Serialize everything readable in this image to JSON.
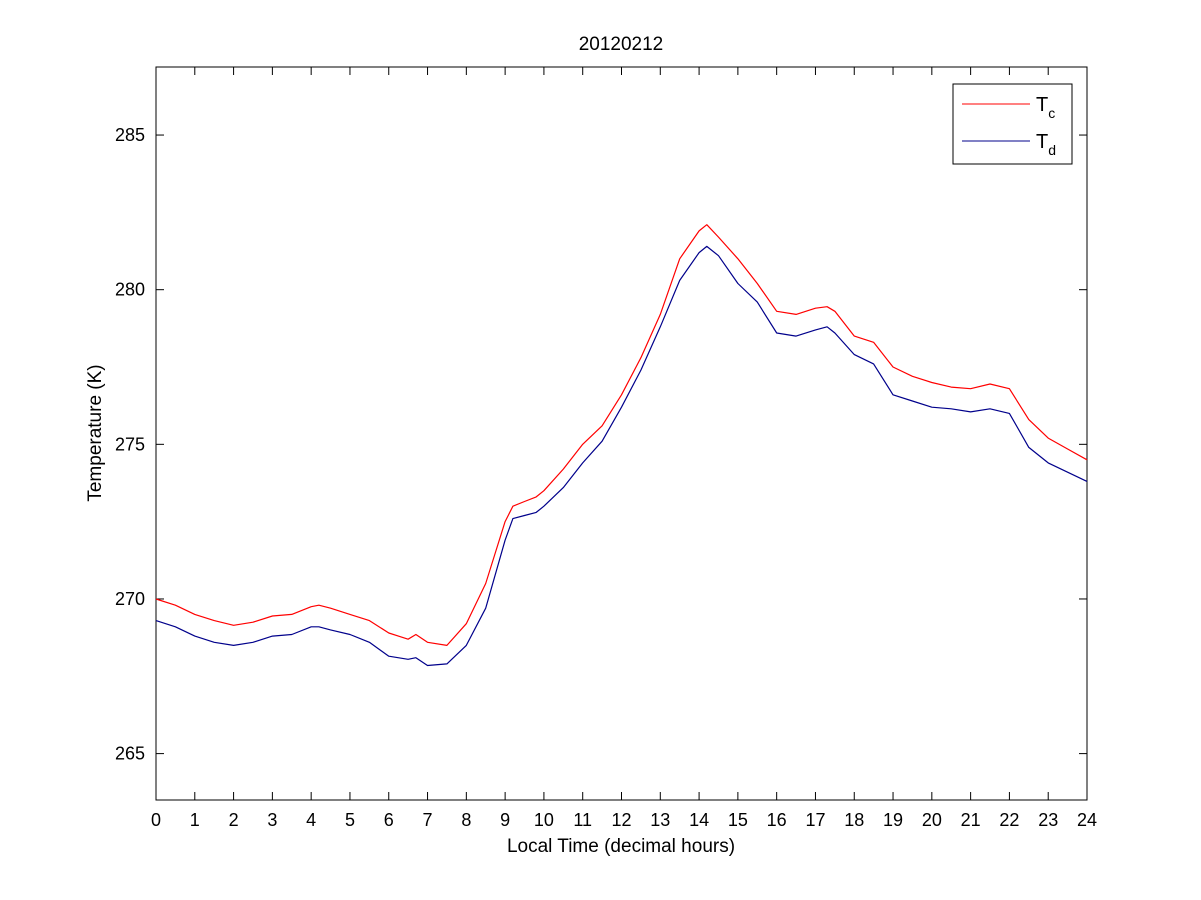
{
  "chart_data": {
    "type": "line",
    "title": "20120212",
    "xlabel": "Local Time (decimal hours)",
    "ylabel": "Temperature (K)",
    "xlim": [
      0,
      24
    ],
    "ylim": [
      263.5,
      287.2
    ],
    "xticks": [
      0,
      1,
      2,
      3,
      4,
      5,
      6,
      7,
      8,
      9,
      10,
      11,
      12,
      13,
      14,
      15,
      16,
      17,
      18,
      19,
      20,
      21,
      22,
      23,
      24
    ],
    "yticks": [
      265,
      270,
      275,
      280,
      285
    ],
    "grid": false,
    "legend_position": "top-right",
    "series": [
      {
        "name_main": "T",
        "name_sub": "c",
        "color": "#ff0000",
        "x": [
          0,
          0.5,
          1,
          1.5,
          2,
          2.5,
          3,
          3.5,
          4,
          4.2,
          4.5,
          5,
          5.5,
          6,
          6.5,
          6.7,
          7,
          7.5,
          8,
          8.5,
          9,
          9.2,
          9.5,
          9.8,
          10,
          10.5,
          11,
          11.5,
          12,
          12.5,
          13,
          13.5,
          14,
          14.2,
          14.5,
          15,
          15.5,
          16,
          16.5,
          17,
          17.3,
          17.5,
          18,
          18.5,
          19,
          19.5,
          20,
          20.5,
          21,
          21.5,
          22,
          22.5,
          23,
          23.5,
          24
        ],
        "y": [
          270.0,
          269.8,
          269.5,
          269.3,
          269.15,
          269.25,
          269.45,
          269.5,
          269.75,
          269.8,
          269.7,
          269.5,
          269.3,
          268.9,
          268.7,
          268.85,
          268.6,
          268.5,
          269.2,
          270.5,
          272.5,
          273.0,
          273.15,
          273.3,
          273.5,
          274.2,
          275.0,
          275.6,
          276.6,
          277.8,
          279.2,
          281.0,
          281.9,
          282.1,
          281.7,
          281.0,
          280.2,
          279.3,
          279.2,
          279.4,
          279.45,
          279.3,
          278.5,
          278.3,
          277.5,
          277.2,
          277.0,
          276.85,
          276.8,
          276.95,
          276.8,
          275.8,
          275.2,
          274.85,
          274.5
        ]
      },
      {
        "name_main": "T",
        "name_sub": "d",
        "color": "#00008b",
        "x": [
          0,
          0.5,
          1,
          1.5,
          2,
          2.5,
          3,
          3.5,
          4,
          4.2,
          4.5,
          5,
          5.5,
          6,
          6.5,
          6.7,
          7,
          7.5,
          8,
          8.5,
          9,
          9.2,
          9.5,
          9.8,
          10,
          10.5,
          11,
          11.5,
          12,
          12.5,
          13,
          13.5,
          14,
          14.2,
          14.5,
          15,
          15.5,
          16,
          16.5,
          17,
          17.3,
          17.5,
          18,
          18.5,
          19,
          19.5,
          20,
          20.5,
          21,
          21.5,
          22,
          22.5,
          23,
          23.5,
          24
        ],
        "y": [
          269.3,
          269.1,
          268.8,
          268.6,
          268.5,
          268.6,
          268.8,
          268.85,
          269.1,
          269.1,
          269.0,
          268.85,
          268.6,
          268.15,
          268.05,
          268.1,
          267.85,
          267.9,
          268.5,
          269.7,
          271.9,
          272.6,
          272.7,
          272.8,
          273.0,
          273.6,
          274.4,
          275.1,
          276.2,
          277.4,
          278.8,
          280.3,
          281.2,
          281.4,
          281.1,
          280.2,
          279.6,
          278.6,
          278.5,
          278.7,
          278.8,
          278.6,
          277.9,
          277.6,
          276.6,
          276.4,
          276.2,
          276.15,
          276.05,
          276.15,
          276.0,
          274.9,
          274.4,
          274.1,
          273.8
        ]
      }
    ]
  }
}
